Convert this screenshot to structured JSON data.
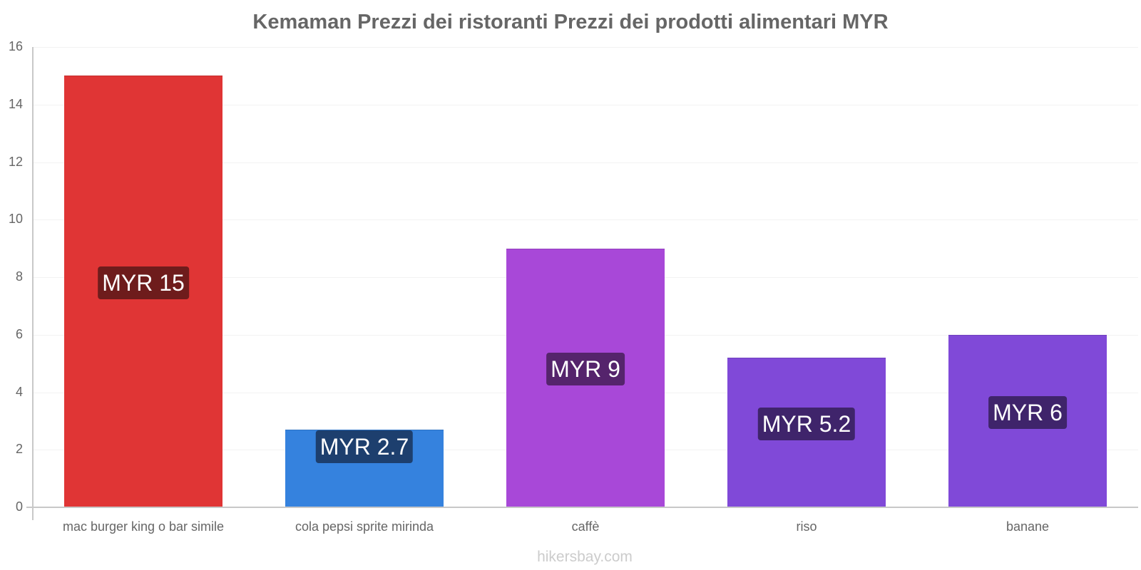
{
  "chart_data": {
    "type": "bar",
    "title": "Kemaman Prezzi dei ristoranti Prezzi dei prodotti alimentari MYR",
    "categories": [
      "mac burger king o bar simile",
      "cola pepsi sprite mirinda",
      "caffè",
      "riso",
      "banane"
    ],
    "values": [
      15,
      2.7,
      9,
      5.2,
      6
    ],
    "data_labels": [
      "MYR 15",
      "MYR 2.7",
      "MYR 9",
      "MYR 5.2",
      "MYR 6"
    ],
    "bar_colors": [
      "#e03535",
      "#3582de",
      "#a848d8",
      "#8049d8",
      "#8049d8"
    ],
    "label_bg_colors": [
      "#6e1c1c",
      "#1d3f6e",
      "#55246c",
      "#3f246b",
      "#3f246b"
    ],
    "xlabel": "",
    "ylabel": "",
    "ylim": [
      0,
      16
    ],
    "yticks": [
      0,
      2,
      4,
      6,
      8,
      10,
      12,
      14,
      16
    ],
    "grid": true,
    "legend": "none"
  },
  "watermark": "hikersbay.com"
}
